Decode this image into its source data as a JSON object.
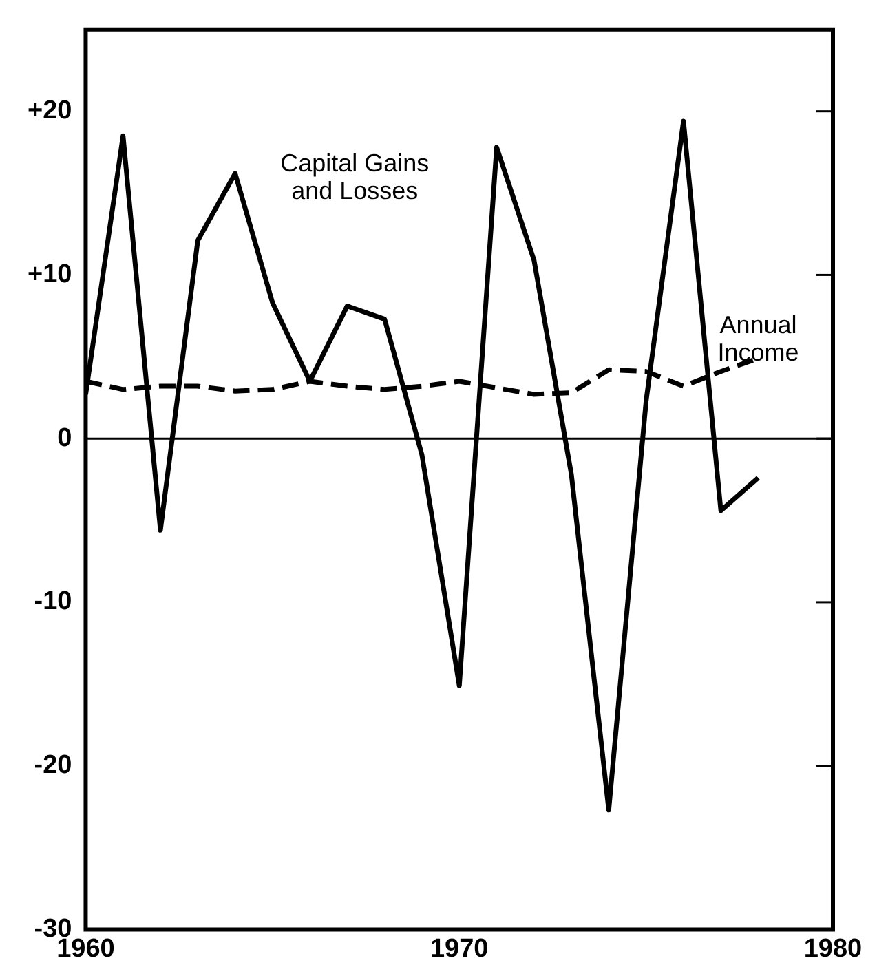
{
  "chart_data": {
    "type": "line",
    "x": [
      1960,
      1961,
      1962,
      1963,
      1964,
      1965,
      1966,
      1967,
      1968,
      1969,
      1970,
      1971,
      1972,
      1973,
      1974,
      1975,
      1976,
      1977,
      1978
    ],
    "series": [
      {
        "name": "Capital Gains and Losses",
        "color": "#000000",
        "line_style": "solid",
        "values": [
          2.7,
          18.5,
          -5.6,
          12.1,
          16.2,
          8.3,
          3.5,
          8.1,
          7.3,
          -1,
          -15.1,
          17.8,
          10.9,
          -2.2,
          -22.7,
          2.3,
          19.4,
          -4.4,
          -2.4
        ]
      },
      {
        "name": "Annual Income",
        "color": "#000000",
        "line_style": "dashed",
        "values": [
          3.5,
          3.0,
          3.2,
          3.2,
          2.9,
          3.0,
          3.5,
          3.2,
          3.0,
          3.2,
          3.5,
          3.1,
          2.7,
          2.8,
          4.2,
          4.1,
          3.2,
          4.1,
          4.9
        ]
      }
    ],
    "xlim": [
      1960,
      1980
    ],
    "xticks": [
      1960,
      1970,
      1980
    ],
    "ylim": [
      -30,
      25
    ],
    "yticks": [
      {
        "value": -30,
        "label": "-30"
      },
      {
        "value": -20,
        "label": "-20"
      },
      {
        "value": -10,
        "label": "-10"
      },
      0,
      {
        "value": 10,
        "label": "+10"
      },
      {
        "value": 20,
        "label": "+20"
      }
    ],
    "ref_lines": [
      {
        "axis": "y",
        "value": 0,
        "color": "#000000"
      }
    ],
    "grid": false,
    "legend": false,
    "marker": "none"
  }
}
